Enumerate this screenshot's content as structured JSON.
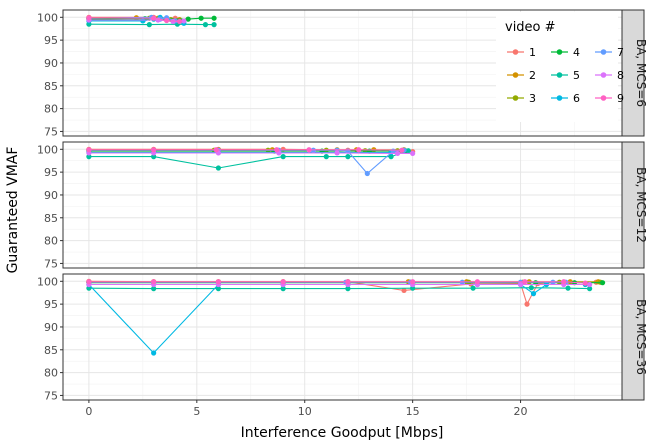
{
  "chart_data": {
    "type": "line",
    "xlabel": "Interference Goodput [Mbps]",
    "ylabel": "Guaranteed VMAF",
    "xlim": [
      -1.2,
      24.7
    ],
    "ylim": [
      74,
      101.6
    ],
    "x_ticks": [
      0,
      5,
      10,
      15,
      20
    ],
    "y_ticks": [
      75,
      80,
      85,
      90,
      95,
      100
    ],
    "grid": true,
    "legend": {
      "title": "video #",
      "placement": "top-right inside first panel",
      "entries": [
        {
          "label": "1",
          "color": "#F8766D"
        },
        {
          "label": "2",
          "color": "#D39200"
        },
        {
          "label": "3",
          "color": "#93AA00"
        },
        {
          "label": "4",
          "color": "#00BA38"
        },
        {
          "label": "5",
          "color": "#00C19F"
        },
        {
          "label": "6",
          "color": "#00B9E3"
        },
        {
          "label": "7",
          "color": "#619CFF"
        },
        {
          "label": "8",
          "color": "#DB72FB"
        },
        {
          "label": "9",
          "color": "#FF61C3"
        }
      ]
    },
    "panels": [
      {
        "strip": "BA, MCS=6",
        "series": [
          {
            "name": "1",
            "color": "#F8766D",
            "points": [
              [
                0,
                100
              ],
              [
                3,
                100
              ],
              [
                4,
                99.8
              ]
            ]
          },
          {
            "name": "2",
            "color": "#D39200",
            "points": [
              [
                0,
                99.9
              ],
              [
                2.2,
                99.9
              ],
              [
                3.2,
                99.8
              ],
              [
                4.2,
                99.5
              ]
            ]
          },
          {
            "name": "3",
            "color": "#93AA00",
            "points": [
              [
                0,
                99.7
              ],
              [
                2.8,
                99.8
              ],
              [
                3.8,
                99.5
              ]
            ]
          },
          {
            "name": "4",
            "color": "#00BA38",
            "points": [
              [
                0,
                99.6
              ],
              [
                2.6,
                99.7
              ],
              [
                3.6,
                99.6
              ],
              [
                4.6,
                99.6
              ],
              [
                5.2,
                99.8
              ],
              [
                5.8,
                99.8
              ]
            ]
          },
          {
            "name": "5",
            "color": "#00C19F",
            "points": [
              [
                0,
                98.5
              ],
              [
                2.8,
                98.4
              ],
              [
                4.1,
                98.5
              ],
              [
                5.4,
                98.4
              ],
              [
                5.8,
                98.4
              ]
            ]
          },
          {
            "name": "6",
            "color": "#00B9E3",
            "points": [
              [
                0,
                99.2
              ],
              [
                2.5,
                99.2
              ],
              [
                3.0,
                99.6
              ],
              [
                3.3,
                100
              ],
              [
                4.4,
                98.7
              ]
            ]
          },
          {
            "name": "7",
            "color": "#619CFF",
            "points": [
              [
                0,
                99.8
              ],
              [
                2.9,
                100
              ],
              [
                3.3,
                99.6
              ],
              [
                3.6,
                99.9
              ],
              [
                4.0,
                99.2
              ]
            ]
          },
          {
            "name": "8",
            "color": "#DB72FB",
            "points": [
              [
                0,
                99.4
              ],
              [
                3.2,
                99.4
              ],
              [
                3.9,
                99.1
              ],
              [
                4.4,
                99.2
              ]
            ]
          },
          {
            "name": "9",
            "color": "#FF61C3",
            "points": [
              [
                0,
                99.9
              ],
              [
                3.0,
                99.8
              ],
              [
                3.6,
                99.3
              ],
              [
                4.2,
                99.1
              ]
            ]
          }
        ]
      },
      {
        "strip": "BA, MCS=12",
        "series": [
          {
            "name": "1",
            "color": "#F8766D",
            "points": [
              [
                0,
                100
              ],
              [
                3,
                100
              ],
              [
                6,
                100
              ],
              [
                9,
                100
              ],
              [
                12,
                99.8
              ],
              [
                14.5,
                99.6
              ],
              [
                15,
                99.5
              ]
            ]
          },
          {
            "name": "2",
            "color": "#D39200",
            "points": [
              [
                0,
                99.9
              ],
              [
                3,
                99.9
              ],
              [
                6,
                99.9
              ],
              [
                8.5,
                99.9
              ],
              [
                11.5,
                99.9
              ],
              [
                12.4,
                99.9
              ],
              [
                13.2,
                99.9
              ],
              [
                14.6,
                99.9
              ]
            ]
          },
          {
            "name": "3",
            "color": "#93AA00",
            "points": [
              [
                0,
                99.8
              ],
              [
                3,
                99.8
              ],
              [
                5.8,
                99.8
              ],
              [
                8.3,
                99.8
              ],
              [
                11,
                99.8
              ],
              [
                12.8,
                99.7
              ],
              [
                14.3,
                99.7
              ]
            ]
          },
          {
            "name": "4",
            "color": "#00BA38",
            "points": [
              [
                0,
                99.6
              ],
              [
                3,
                99.6
              ],
              [
                6,
                99.6
              ],
              [
                8.6,
                99.6
              ],
              [
                10.8,
                99.6
              ],
              [
                13,
                99.6
              ],
              [
                14.7,
                99.6
              ]
            ]
          },
          {
            "name": "5",
            "color": "#00C19F",
            "points": [
              [
                0,
                98.4
              ],
              [
                3,
                98.4
              ],
              [
                6,
                95.9
              ],
              [
                9,
                98.4
              ],
              [
                11,
                98.4
              ],
              [
                12,
                98.4
              ],
              [
                14,
                98.4
              ],
              [
                14.8,
                99.7
              ]
            ]
          },
          {
            "name": "6",
            "color": "#00B9E3",
            "points": [
              [
                0,
                99.3
              ],
              [
                3,
                99.3
              ],
              [
                6,
                99.3
              ],
              [
                8.8,
                99.3
              ],
              [
                11.5,
                99.3
              ],
              [
                14,
                99.3
              ]
            ]
          },
          {
            "name": "7",
            "color": "#619CFF",
            "points": [
              [
                0,
                99.8
              ],
              [
                3,
                99.8
              ],
              [
                6,
                99.8
              ],
              [
                8.8,
                99.8
              ],
              [
                10.4,
                99.8
              ],
              [
                11.5,
                99.8
              ],
              [
                12,
                99.6
              ],
              [
                12.9,
                94.7
              ],
              [
                14.1,
                99.6
              ],
              [
                14.6,
                99.8
              ]
            ]
          },
          {
            "name": "8",
            "color": "#DB72FB",
            "points": [
              [
                0,
                99.2
              ],
              [
                3,
                99.2
              ],
              [
                6,
                99.2
              ],
              [
                8.8,
                99.2
              ],
              [
                11.5,
                99.2
              ],
              [
                14.3,
                99.1
              ],
              [
                15,
                99.1
              ]
            ]
          },
          {
            "name": "9",
            "color": "#FF61C3",
            "points": [
              [
                0,
                99.9
              ],
              [
                3,
                99.9
              ],
              [
                5.9,
                99.9
              ],
              [
                8.7,
                99.9
              ],
              [
                10.2,
                99.9
              ],
              [
                12.5,
                99.9
              ],
              [
                14.5,
                99.8
              ]
            ]
          }
        ]
      },
      {
        "strip": "BA, MCS=36",
        "series": [
          {
            "name": "1",
            "color": "#F8766D",
            "points": [
              [
                0,
                100
              ],
              [
                3,
                99.9
              ],
              [
                6,
                99.9
              ],
              [
                9,
                99.9
              ],
              [
                12,
                99.9
              ],
              [
                14.6,
                98
              ],
              [
                17.7,
                99.4
              ],
              [
                20,
                99.5
              ],
              [
                20.3,
                95
              ],
              [
                20.8,
                99.5
              ],
              [
                22,
                99.8
              ],
              [
                23.5,
                99.8
              ]
            ]
          },
          {
            "name": "2",
            "color": "#D39200",
            "points": [
              [
                0,
                99.9
              ],
              [
                3,
                99.9
              ],
              [
                6,
                99.9
              ],
              [
                9,
                99.9
              ],
              [
                12,
                99.9
              ],
              [
                14.8,
                99.9
              ],
              [
                17.5,
                99.9
              ],
              [
                20.4,
                99.9
              ],
              [
                22.3,
                99.9
              ],
              [
                23.6,
                99.9
              ]
            ]
          },
          {
            "name": "3",
            "color": "#93AA00",
            "points": [
              [
                0,
                99.8
              ],
              [
                3,
                99.8
              ],
              [
                6,
                99.8
              ],
              [
                9,
                99.8
              ],
              [
                12,
                99.8
              ],
              [
                14.9,
                99.8
              ],
              [
                17.6,
                99.8
              ],
              [
                20.1,
                99.8
              ],
              [
                21.8,
                99.8
              ],
              [
                23.7,
                99.8
              ]
            ]
          },
          {
            "name": "4",
            "color": "#00BA38",
            "points": [
              [
                0,
                99.7
              ],
              [
                3,
                99.7
              ],
              [
                6,
                99.7
              ],
              [
                9,
                99.7
              ],
              [
                12,
                99.7
              ],
              [
                15,
                99.7
              ],
              [
                18,
                99.7
              ],
              [
                20.7,
                99.7
              ],
              [
                22.5,
                99.7
              ],
              [
                23.8,
                99.7
              ]
            ]
          },
          {
            "name": "5",
            "color": "#00C19F",
            "points": [
              [
                0,
                98.5
              ],
              [
                3,
                98.4
              ],
              [
                6,
                98.4
              ],
              [
                9,
                98.4
              ],
              [
                12,
                98.4
              ],
              [
                15,
                98.5
              ],
              [
                17.8,
                98.5
              ],
              [
                20.5,
                98.6
              ],
              [
                22.2,
                98.5
              ],
              [
                23.2,
                98.4
              ]
            ]
          },
          {
            "name": "6",
            "color": "#00B9E3",
            "points": [
              [
                0,
                99.3
              ],
              [
                3,
                84.3
              ],
              [
                6,
                99.3
              ],
              [
                9,
                99.3
              ],
              [
                12,
                99.3
              ],
              [
                15,
                99.3
              ],
              [
                18,
                99.3
              ],
              [
                20,
                99.3
              ],
              [
                20.6,
                97.3
              ],
              [
                21.2,
                99.3
              ],
              [
                23,
                99.3
              ]
            ]
          },
          {
            "name": "7",
            "color": "#619CFF",
            "points": [
              [
                0,
                99.8
              ],
              [
                3,
                99.8
              ],
              [
                6,
                99.8
              ],
              [
                9,
                99.8
              ],
              [
                11.9,
                99.8
              ],
              [
                14.9,
                99.8
              ],
              [
                17.3,
                99.8
              ],
              [
                20,
                99.8
              ],
              [
                21.5,
                99.8
              ],
              [
                22.1,
                99.8
              ]
            ]
          },
          {
            "name": "8",
            "color": "#DB72FB",
            "points": [
              [
                0,
                99.3
              ],
              [
                3,
                99.3
              ],
              [
                6,
                99.3
              ],
              [
                9,
                99.3
              ],
              [
                12,
                99.3
              ],
              [
                15,
                99.3
              ],
              [
                18,
                99.3
              ],
              [
                20,
                99.3
              ],
              [
                22,
                99.3
              ],
              [
                23.2,
                99.3
              ]
            ]
          },
          {
            "name": "9",
            "color": "#FF61C3",
            "points": [
              [
                0,
                99.9
              ],
              [
                3,
                99.9
              ],
              [
                6,
                99.9
              ],
              [
                9,
                99.9
              ],
              [
                12,
                99.9
              ],
              [
                15,
                99.9
              ],
              [
                18,
                99.9
              ],
              [
                20.2,
                99.9
              ],
              [
                22,
                99.9
              ],
              [
                23,
                99.6
              ]
            ]
          }
        ]
      }
    ]
  }
}
